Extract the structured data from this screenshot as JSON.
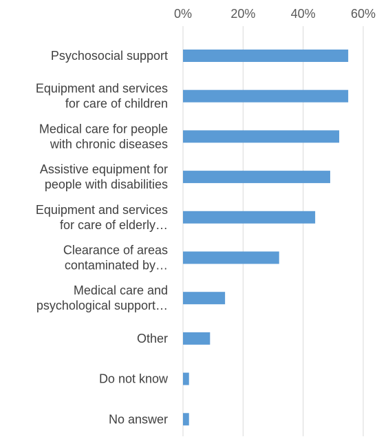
{
  "chart_data": {
    "type": "bar",
    "orientation": "horizontal",
    "title": "",
    "xlabel": "",
    "ylabel": "",
    "xlim": [
      0,
      60
    ],
    "x_ticks": [
      "0%",
      "20%",
      "40%",
      "60%"
    ],
    "x_tick_values": [
      0,
      20,
      40,
      60
    ],
    "axis_position": "top",
    "grid": true,
    "legend": "none",
    "bar_color": "#5b9bd5",
    "categories": [
      [
        "Psychosocial support"
      ],
      [
        "Equipment and services",
        "for care of children"
      ],
      [
        "Medical care for people",
        "with chronic diseases"
      ],
      [
        "Assistive equipment for",
        "people with disabilities"
      ],
      [
        "Equipment and services",
        "for care of elderly…"
      ],
      [
        "Clearance of areas",
        "contaminated by…"
      ],
      [
        "Medical care and",
        "psychological support…"
      ],
      [
        "Other"
      ],
      [
        "Do not know"
      ],
      [
        "No answer"
      ]
    ],
    "values": [
      55,
      55,
      52,
      49,
      44,
      32,
      14,
      9,
      2,
      2
    ]
  }
}
